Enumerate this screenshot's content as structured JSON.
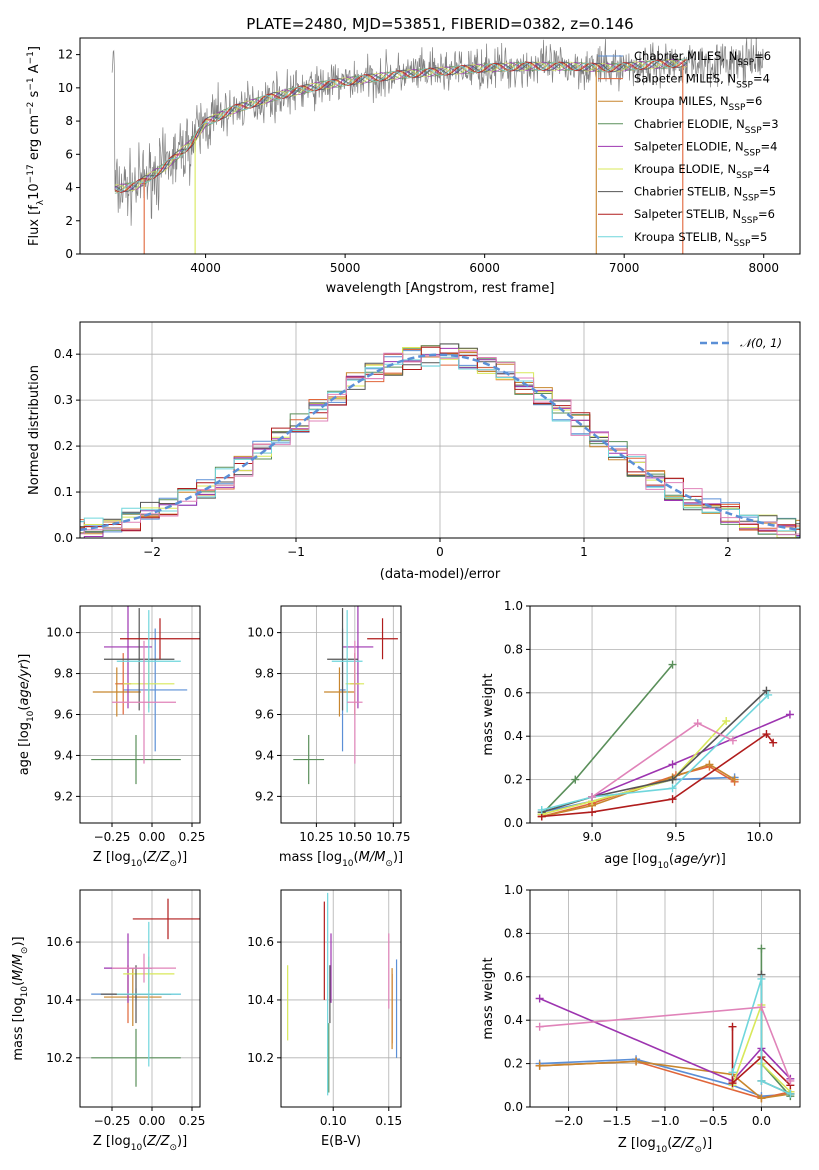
{
  "figure_title": "PLATE=2480, MJD=53851, FIBERID=0382, z=0.146",
  "colors": {
    "Chabrier MILES": "#5b8fd6",
    "Salpeter MILES": "#e0663a",
    "Kroupa MILES": "#c8862e",
    "Chabrier ELODIE": "#5a8f5a",
    "Salpeter ELODIE": "#9d34b0",
    "Kroupa ELODIE": "#d8e85a",
    "Chabrier STELIB": "#555555",
    "Salpeter STELIB": "#b01c1c",
    "Kroupa STELIB": "#6fd6dc",
    "Kroupa MILES pink": "#e083b9",
    "data": "#808080",
    "normal": "#5b8fd6",
    "grid": "#b0b0b0"
  },
  "chart_data": [
    {
      "id": "spectrum",
      "type": "line",
      "title": "PLATE=2480, MJD=53851, FIBERID=0382, z=0.146",
      "xlabel": "wavelength [Angstrom, rest frame]",
      "ylabel": "Flux [f_λ 10^-17 erg cm^-2 s^-1 A^-1]",
      "xlim": [
        3100,
        8260
      ],
      "ylim": [
        0,
        13
      ],
      "xticks": [
        4000,
        5000,
        6000,
        7000,
        8000
      ],
      "yticks": [
        0,
        2,
        4,
        6,
        8,
        10,
        12
      ],
      "grid": false,
      "legend_position": "top-right",
      "continuum": {
        "x": [
          3350,
          3500,
          3700,
          3900,
          4000,
          4200,
          4500,
          4800,
          5100,
          5400,
          5700,
          6000,
          6300,
          6600,
          6900,
          7200,
          7450
        ],
        "y": [
          3.9,
          4.1,
          5.2,
          6.7,
          7.9,
          8.7,
          9.5,
          10.1,
          10.5,
          10.8,
          11.0,
          11.2,
          11.3,
          11.3,
          11.2,
          11.4,
          11.5
        ]
      },
      "data_extent": {
        "x_min": 3330,
        "x_max": 8000
      },
      "legend": [
        "Chabrier MILES, N_SSP=6",
        "Salpeter MILES, N_SSP=4",
        "Kroupa MILES, N_SSP=6",
        "Chabrier ELODIE, N_SSP=3",
        "Salpeter ELODIE, N_SSP=4",
        "Kroupa ELODIE, N_SSP=4",
        "Chabrier STELIB, N_SSP=5",
        "Salpeter STELIB, N_SSP=6",
        "Kroupa STELIB, N_SSP=5"
      ]
    },
    {
      "id": "residuals",
      "type": "line",
      "xlabel": "(data-model)/error",
      "ylabel": "Normed distribution",
      "xlim": [
        -2.5,
        2.5
      ],
      "ylim": [
        0,
        0.47
      ],
      "xticks": [
        -2,
        -1,
        0,
        1,
        2
      ],
      "yticks": [
        0.0,
        0.1,
        0.2,
        0.3,
        0.4
      ],
      "grid": true,
      "legend_position": "top-right",
      "legend": [
        "𝒩(0, 1)"
      ],
      "normal": {
        "mean": 0,
        "sigma": 1
      }
    },
    {
      "id": "age_vs_Z",
      "type": "scatter",
      "xlabel": "Z [log10(Z/Z☉)]",
      "ylabel": "age [log10(age/yr)]",
      "xlim": [
        -0.45,
        0.3
      ],
      "ylim": [
        9.07,
        10.13
      ],
      "xticks": [
        -0.25,
        0.0,
        0.25
      ],
      "yticks": [
        9.2,
        9.4,
        9.6,
        9.8,
        10.0
      ],
      "grid": true,
      "points": [
        {
          "series": "Chabrier MILES",
          "x": 0.02,
          "xerr": 0.2,
          "y": 9.72,
          "yerr": 0.3
        },
        {
          "series": "Salpeter MILES",
          "x": -0.18,
          "xerr": 0.05,
          "y": 9.75,
          "yerr": 0.15
        },
        {
          "series": "Kroupa MILES",
          "x": -0.22,
          "xerr": 0.15,
          "y": 9.71,
          "yerr": 0.12
        },
        {
          "series": "Chabrier ELODIE",
          "x": -0.1,
          "xerr": 0.28,
          "y": 9.38,
          "yerr": 0.12
        },
        {
          "series": "Salpeter ELODIE",
          "x": -0.15,
          "xerr": 0.15,
          "y": 9.93,
          "yerr": 0.3
        },
        {
          "series": "Kroupa ELODIE",
          "x": -0.02,
          "xerr": 0.16,
          "y": 9.75,
          "yerr": 0.12
        },
        {
          "series": "Chabrier STELIB",
          "x": -0.08,
          "xerr": 0.22,
          "y": 9.87,
          "yerr": 0.25
        },
        {
          "series": "Salpeter STELIB",
          "x": 0.05,
          "xerr": 0.25,
          "y": 9.97,
          "yerr": 0.1
        },
        {
          "series": "Kroupa STELIB",
          "x": -0.02,
          "xerr": 0.2,
          "y": 9.86,
          "yerr": 0.25
        },
        {
          "series": "Kroupa MILES pink",
          "x": -0.05,
          "xerr": 0.2,
          "y": 9.66,
          "yerr": 0.3
        }
      ]
    },
    {
      "id": "age_vs_mass",
      "type": "scatter",
      "xlabel": "mass [log10(M/M☉)]",
      "ylabel": "",
      "xlim": [
        10.02,
        10.8
      ],
      "ylim": [
        9.07,
        10.13
      ],
      "xticks": [
        10.25,
        10.5,
        10.75
      ],
      "yticks": [
        9.2,
        9.4,
        9.6,
        9.8,
        10.0
      ],
      "grid": true,
      "points": [
        {
          "series": "Chabrier MILES",
          "x": 10.42,
          "xerr": 0.02,
          "y": 9.72,
          "yerr": 0.3
        },
        {
          "series": "Salpeter MILES",
          "x": 10.5,
          "xerr": 0.03,
          "y": 9.75,
          "yerr": 0.15
        },
        {
          "series": "Kroupa MILES",
          "x": 10.4,
          "xerr": 0.1,
          "y": 9.71,
          "yerr": 0.12
        },
        {
          "series": "Chabrier ELODIE",
          "x": 10.2,
          "xerr": 0.1,
          "y": 9.38,
          "yerr": 0.12
        },
        {
          "series": "Salpeter ELODIE",
          "x": 10.52,
          "xerr": 0.1,
          "y": 9.93,
          "yerr": 0.3
        },
        {
          "series": "Kroupa ELODIE",
          "x": 10.5,
          "xerr": 0.06,
          "y": 9.75,
          "yerr": 0.12
        },
        {
          "series": "Chabrier STELIB",
          "x": 10.42,
          "xerr": 0.1,
          "y": 9.87,
          "yerr": 0.25
        },
        {
          "series": "Salpeter STELIB",
          "x": 10.68,
          "xerr": 0.1,
          "y": 9.97,
          "yerr": 0.1
        },
        {
          "series": "Kroupa STELIB",
          "x": 10.45,
          "xerr": 0.1,
          "y": 9.86,
          "yerr": 0.25
        },
        {
          "series": "Kroupa MILES pink",
          "x": 10.5,
          "xerr": 0.05,
          "y": 9.66,
          "yerr": 0.3
        }
      ]
    },
    {
      "id": "weight_vs_age",
      "type": "line",
      "xlabel": "age [log10(age/yr)]",
      "ylabel": "mass weight",
      "xlim": [
        8.63,
        10.24
      ],
      "ylim": [
        0,
        1
      ],
      "xticks": [
        9.0,
        9.5,
        10.0
      ],
      "yticks": [
        0.0,
        0.2,
        0.4,
        0.6,
        0.8,
        1.0
      ],
      "grid": true,
      "series": [
        {
          "name": "Chabrier MILES",
          "x": [
            8.7,
            9.0,
            9.48,
            9.85
          ],
          "y": [
            0.05,
            0.1,
            0.2,
            0.21
          ]
        },
        {
          "name": "Salpeter MILES",
          "x": [
            8.7,
            9.0,
            9.5,
            9.7,
            9.85
          ],
          "y": [
            0.03,
            0.09,
            0.22,
            0.26,
            0.19
          ]
        },
        {
          "name": "Kroupa MILES",
          "x": [
            8.7,
            9.0,
            9.48,
            9.7,
            9.85
          ],
          "y": [
            0.03,
            0.08,
            0.21,
            0.27,
            0.2
          ]
        },
        {
          "name": "Chabrier ELODIE",
          "x": [
            8.7,
            8.9,
            9.48
          ],
          "y": [
            0.04,
            0.2,
            0.73
          ]
        },
        {
          "name": "Salpeter ELODIE",
          "x": [
            9.0,
            9.48,
            10.18
          ],
          "y": [
            0.12,
            0.27,
            0.5
          ]
        },
        {
          "name": "Kroupa ELODIE",
          "x": [
            8.7,
            9.0,
            9.48,
            9.8
          ],
          "y": [
            0.04,
            0.1,
            0.2,
            0.47
          ]
        },
        {
          "name": "Chabrier STELIB",
          "x": [
            8.7,
            9.0,
            9.48,
            10.04
          ],
          "y": [
            0.05,
            0.12,
            0.2,
            0.61
          ]
        },
        {
          "name": "Salpeter STELIB",
          "x": [
            8.7,
            9.0,
            9.48,
            10.04,
            10.08
          ],
          "y": [
            0.03,
            0.05,
            0.11,
            0.41,
            0.37
          ]
        },
        {
          "name": "Kroupa STELIB",
          "x": [
            8.7,
            9.0,
            9.48,
            10.05
          ],
          "y": [
            0.06,
            0.12,
            0.16,
            0.59
          ]
        },
        {
          "name": "Kroupa MILES pink",
          "x": [
            9.0,
            9.63,
            9.84
          ],
          "y": [
            0.12,
            0.46,
            0.38
          ]
        }
      ]
    },
    {
      "id": "mass_vs_Z",
      "type": "scatter",
      "xlabel": "Z [log10(Z/Z☉)]",
      "ylabel": "mass [log10(M/M☉)]",
      "xlim": [
        -0.45,
        0.3
      ],
      "ylim": [
        10.03,
        10.78
      ],
      "xticks": [
        -0.25,
        0.0,
        0.25
      ],
      "yticks": [
        10.2,
        10.4,
        10.6
      ],
      "grid": true,
      "points": [
        {
          "series": "Chabrier MILES",
          "x": -0.1,
          "xerr": 0.28,
          "y": 10.42,
          "yerr": 0.02
        },
        {
          "series": "Salpeter MILES",
          "x": -0.15,
          "xerr": 0.08,
          "y": 10.42,
          "yerr": 0.1
        },
        {
          "series": "Kroupa MILES",
          "x": -0.12,
          "xerr": 0.18,
          "y": 10.41,
          "yerr": 0.1
        },
        {
          "series": "Chabrier ELODIE",
          "x": -0.1,
          "xerr": 0.28,
          "y": 10.2,
          "yerr": 0.1
        },
        {
          "series": "Salpeter ELODIE",
          "x": -0.15,
          "xerr": 0.15,
          "y": 10.51,
          "yerr": 0.12
        },
        {
          "series": "Kroupa ELODIE",
          "x": -0.02,
          "xerr": 0.16,
          "y": 10.49,
          "yerr": 0.06
        },
        {
          "series": "Chabrier STELIB",
          "x": -0.1,
          "xerr": 0.22,
          "y": 10.42,
          "yerr": 0.1
        },
        {
          "series": "Salpeter STELIB",
          "x": 0.1,
          "xerr": 0.22,
          "y": 10.68,
          "yerr": 0.07
        },
        {
          "series": "Kroupa STELIB",
          "x": -0.02,
          "xerr": 0.2,
          "y": 10.42,
          "yerr": 0.25
        },
        {
          "series": "Kroupa MILES pink",
          "x": -0.05,
          "xerr": 0.2,
          "y": 10.51,
          "yerr": 0.05
        }
      ]
    },
    {
      "id": "mass_vs_EBV",
      "type": "scatter",
      "xlabel": "E(B-V)",
      "ylabel": "",
      "xlim": [
        0.053,
        0.161
      ],
      "ylim": [
        10.03,
        10.78
      ],
      "xticks": [
        0.1,
        0.15
      ],
      "yticks": [
        10.2,
        10.4,
        10.6
      ],
      "grid": true,
      "points": [
        {
          "series": "Chabrier MILES",
          "x": 0.157,
          "xerr": 0,
          "y": 10.37,
          "yerr": 0.17
        },
        {
          "series": "Salpeter MILES",
          "x": 0.153,
          "xerr": 0,
          "y": 10.37,
          "yerr": 0.12
        },
        {
          "series": "Kroupa MILES",
          "x": 0.153,
          "xerr": 0,
          "y": 10.37,
          "yerr": 0.14
        },
        {
          "series": "Chabrier ELODIE",
          "x": 0.096,
          "xerr": 0,
          "y": 10.2,
          "yerr": 0.12
        },
        {
          "series": "Salpeter ELODIE",
          "x": 0.098,
          "xerr": 0,
          "y": 10.51,
          "yerr": 0.12
        },
        {
          "series": "Kroupa ELODIE",
          "x": 0.059,
          "xerr": 0,
          "y": 10.39,
          "yerr": 0.13
        },
        {
          "series": "Chabrier STELIB",
          "x": 0.097,
          "xerr": 0,
          "y": 10.42,
          "yerr": 0.1
        },
        {
          "series": "Salpeter STELIB",
          "x": 0.092,
          "xerr": 0,
          "y": 10.57,
          "yerr": 0.17
        },
        {
          "series": "Kroupa STELIB",
          "x": 0.095,
          "xerr": 0,
          "y": 10.42,
          "yerr": 0.35
        },
        {
          "series": "Kroupa MILES pink",
          "x": 0.15,
          "xerr": 0,
          "y": 10.5,
          "yerr": 0.13
        }
      ]
    },
    {
      "id": "weight_vs_Z",
      "type": "line",
      "xlabel": "Z [log10(Z/Z☉)]",
      "ylabel": "mass weight",
      "xlim": [
        -2.4,
        0.4
      ],
      "ylim": [
        0,
        1
      ],
      "xticks": [
        -2.0,
        -1.5,
        -1.0,
        -0.5,
        0.0
      ],
      "yticks": [
        0.0,
        0.2,
        0.4,
        0.6,
        0.8,
        1.0
      ],
      "grid": true,
      "series": [
        {
          "name": "Chabrier MILES",
          "x": [
            -2.3,
            -1.3,
            -0.3,
            0.0,
            0.3
          ],
          "y": [
            0.2,
            0.22,
            0.1,
            0.05,
            0.06
          ]
        },
        {
          "name": "Salpeter MILES",
          "x": [
            -2.3,
            -1.3,
            0.0,
            0.3
          ],
          "y": [
            0.19,
            0.21,
            0.04,
            0.07
          ]
        },
        {
          "name": "Kroupa MILES",
          "x": [
            -2.3,
            -1.3,
            -0.3,
            0.0,
            0.3
          ],
          "y": [
            0.19,
            0.21,
            0.15,
            0.04,
            0.06
          ]
        },
        {
          "name": "Chabrier ELODIE",
          "x": [
            0.0,
            0.0,
            0.3
          ],
          "y": [
            0.73,
            0.2,
            0.05
          ]
        },
        {
          "name": "Salpeter ELODIE",
          "x": [
            -2.3,
            -0.3,
            0.0,
            0.3
          ],
          "y": [
            0.5,
            0.12,
            0.27,
            0.13
          ]
        },
        {
          "name": "Kroupa ELODIE",
          "x": [
            -0.3,
            0.0,
            0.0,
            0.3
          ],
          "y": [
            0.1,
            0.47,
            0.2,
            0.07
          ]
        },
        {
          "name": "Chabrier STELIB",
          "x": [
            0.0,
            0.0,
            0.3
          ],
          "y": [
            0.61,
            0.12,
            0.06
          ]
        },
        {
          "name": "Salpeter STELIB",
          "x": [
            -0.3,
            -0.3,
            0.0,
            0.3
          ],
          "y": [
            0.37,
            0.11,
            0.23,
            0.1
          ]
        },
        {
          "name": "Kroupa STELIB",
          "x": [
            -0.3,
            0.0,
            0.0,
            0.3
          ],
          "y": [
            0.16,
            0.59,
            0.12,
            0.06
          ]
        },
        {
          "name": "Kroupa MILES pink",
          "x": [
            -2.3,
            0.0,
            0.3
          ],
          "y": [
            0.37,
            0.46,
            0.12
          ]
        }
      ]
    }
  ]
}
